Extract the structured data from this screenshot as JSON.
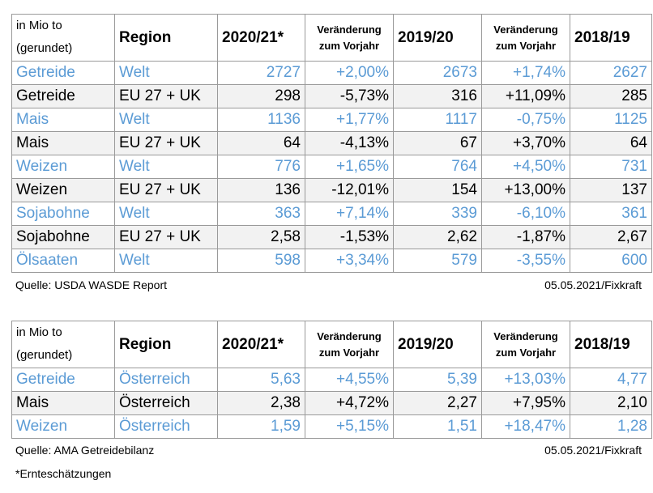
{
  "header": {
    "unit_line1": "in Mio to",
    "unit_line2": "(gerundet)",
    "region": "Region",
    "y1": "2020/21*",
    "chg1_line1": "Veränderung",
    "chg1_line2": "zum Vorjahr",
    "y2": "2019/20",
    "chg2_line1": "Veränderung",
    "chg2_line2": "zum Vorjahr",
    "y3": "2018/19"
  },
  "table1": {
    "rows": [
      {
        "product": "Getreide",
        "region": "Welt",
        "v1": "2727",
        "c1": "+2,00%",
        "v2": "2673",
        "c2": "+1,74%",
        "v3": "2627"
      },
      {
        "product": "Getreide",
        "region": "EU 27 + UK",
        "v1": "298",
        "c1": "-5,73%",
        "v2": "316",
        "c2": "+11,09%",
        "v3": "285"
      },
      {
        "product": "Mais",
        "region": "Welt",
        "v1": "1136",
        "c1": "+1,77%",
        "v2": "1117",
        "c2": "-0,75%",
        "v3": "1125"
      },
      {
        "product": "Mais",
        "region": "EU 27 + UK",
        "v1": "64",
        "c1": "-4,13%",
        "v2": "67",
        "c2": "+3,70%",
        "v3": "64"
      },
      {
        "product": "Weizen",
        "region": "Welt",
        "v1": "776",
        "c1": "+1,65%",
        "v2": "764",
        "c2": "+4,50%",
        "v3": "731"
      },
      {
        "product": "Weizen",
        "region": "EU 27 + UK",
        "v1": "136",
        "c1": "-12,01%",
        "v2": "154",
        "c2": "+13,00%",
        "v3": "137"
      },
      {
        "product": "Sojabohne",
        "region": "Welt",
        "v1": "363",
        "c1": "+7,14%",
        "v2": "339",
        "c2": "-6,10%",
        "v3": "361"
      },
      {
        "product": "Sojabohne",
        "region": "EU 27 + UK",
        "v1": "2,58",
        "c1": "-1,53%",
        "v2": "2,62",
        "c2": "-1,87%",
        "v3": "2,67"
      },
      {
        "product": "Ölsaaten",
        "region": "Welt",
        "v1": "598",
        "c1": "+3,34%",
        "v2": "579",
        "c2": "-3,55%",
        "v3": "600"
      }
    ],
    "source": "Quelle: USDA WASDE Report",
    "date": "05.05.2021/Fixkraft"
  },
  "table2": {
    "rows": [
      {
        "product": "Getreide",
        "region": "Österreich",
        "v1": "5,63",
        "c1": "+4,55%",
        "v2": "5,39",
        "c2": "+13,03%",
        "v3": "4,77"
      },
      {
        "product": "Mais",
        "region": "Österreich",
        "v1": "2,38",
        "c1": "+4,72%",
        "v2": "2,27",
        "c2": "+7,95%",
        "v3": "2,10"
      },
      {
        "product": "Weizen",
        "region": "Österreich",
        "v1": "1,59",
        "c1": "+5,15%",
        "v2": "1,51",
        "c2": "+18,47%",
        "v3": "1,28"
      }
    ],
    "source": "Quelle: AMA Getreidebilanz",
    "date": "05.05.2021/Fixkraft"
  },
  "footnote": "*Ernteschätzungen",
  "colors": {
    "world_text": "#5b9bd5",
    "shade": "#f2f2f2",
    "border": "#9a9a9a"
  }
}
